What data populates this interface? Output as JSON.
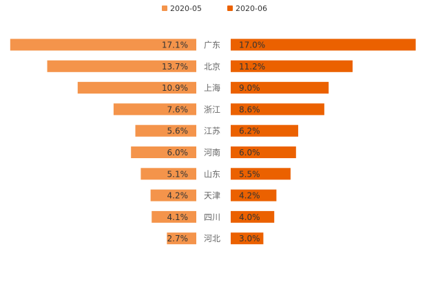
{
  "chart_data": {
    "type": "bar",
    "orientation": "horizontal-butterfly",
    "categories": [
      "广东",
      "北京",
      "上海",
      "浙江",
      "江苏",
      "河南",
      "山东",
      "天津",
      "四川",
      "河北"
    ],
    "series": [
      {
        "name": "2020-05",
        "color": "#f4944b",
        "values": [
          17.1,
          13.7,
          10.9,
          7.6,
          5.6,
          6.0,
          5.1,
          4.2,
          4.1,
          2.7
        ],
        "labels": [
          "17.1%",
          "13.7%",
          "10.9%",
          "7.6%",
          "5.6%",
          "6.0%",
          "5.1%",
          "4.2%",
          "4.1%",
          "2.7%"
        ]
      },
      {
        "name": "2020-06",
        "color": "#eb6100",
        "values": [
          17.0,
          11.2,
          9.0,
          8.6,
          6.2,
          6.0,
          5.5,
          4.2,
          4.0,
          3.0
        ],
        "labels": [
          "17.0%",
          "11.2%",
          "9.0%",
          "8.6%",
          "6.2%",
          "6.0%",
          "5.5%",
          "4.2%",
          "4.0%",
          "3.0%"
        ]
      }
    ],
    "legend": {
      "position": "top-center"
    },
    "grid": false
  }
}
